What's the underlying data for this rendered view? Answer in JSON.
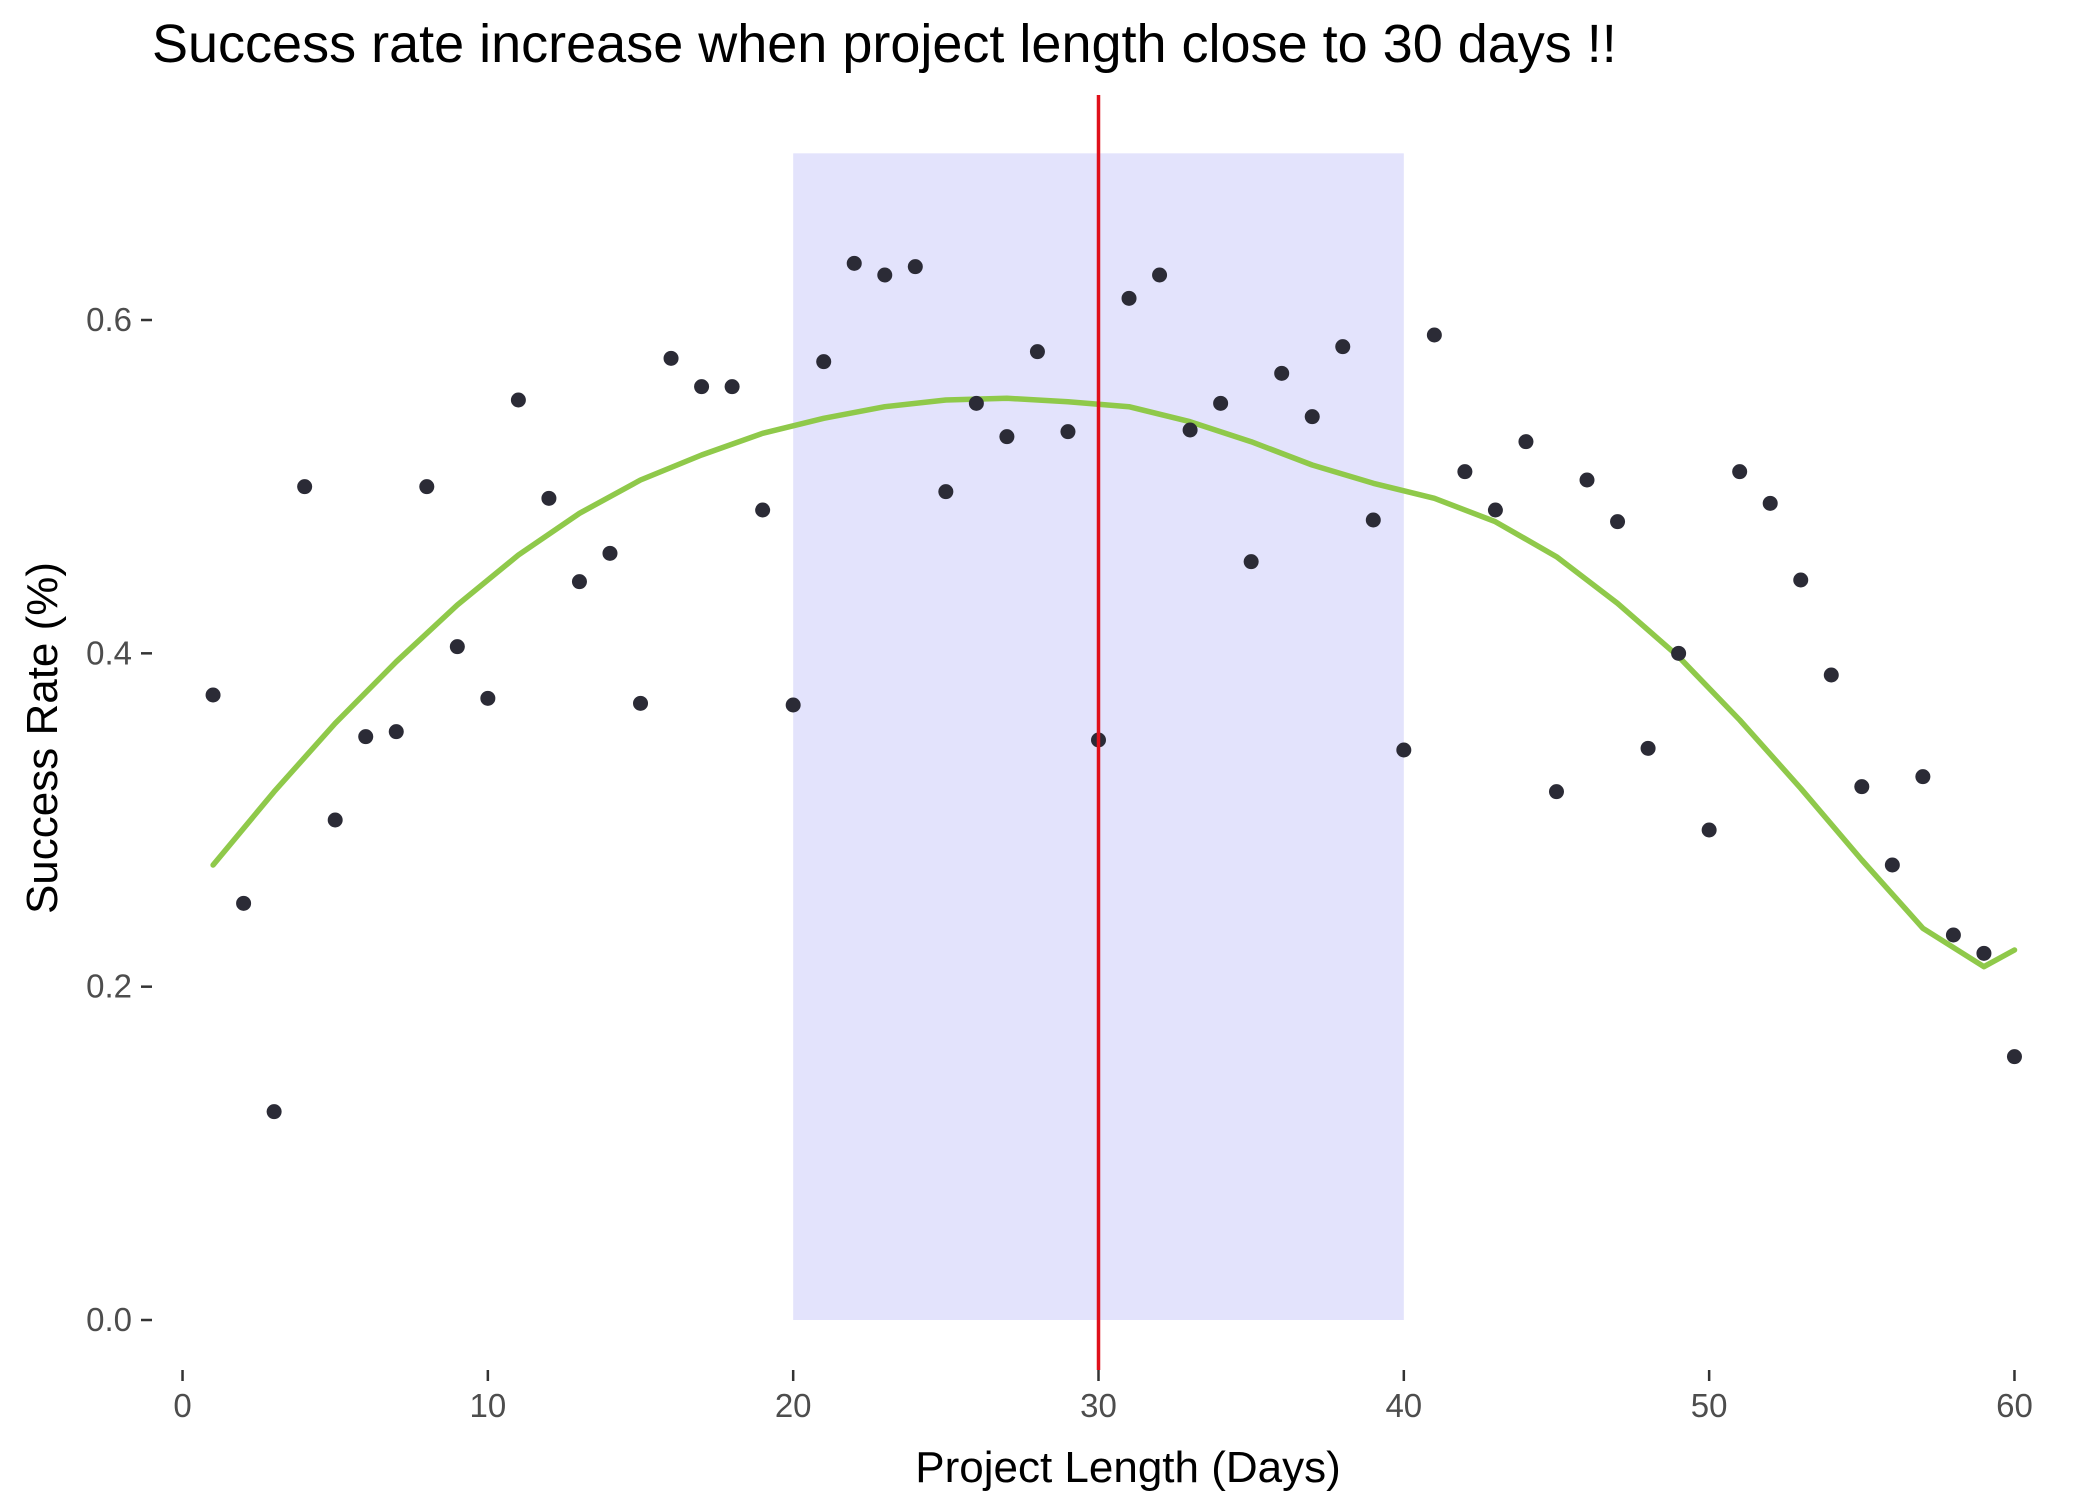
{
  "chart_data": {
    "type": "scatter",
    "title": "Success rate increase when project length close to 30 days !!",
    "xlabel": "Project Length (Days)",
    "ylabel": "Success Rate (%)",
    "xlim": [
      -1,
      61
    ],
    "ylim": [
      -0.03,
      0.735
    ],
    "x_ticks": [
      0,
      10,
      20,
      30,
      40,
      50,
      60
    ],
    "x_tick_labels": [
      "0",
      "10",
      "20",
      "30",
      "40",
      "50",
      "60"
    ],
    "y_ticks": [
      0.0,
      0.2,
      0.4,
      0.6
    ],
    "y_tick_labels": [
      "0.0",
      "0.2",
      "0.4",
      "0.6"
    ],
    "grid": false,
    "legend": "none",
    "points": {
      "x": [
        1,
        2,
        3,
        4,
        5,
        6,
        7,
        8,
        9,
        10,
        11,
        12,
        13,
        14,
        15,
        16,
        17,
        18,
        19,
        20,
        21,
        22,
        23,
        24,
        25,
        26,
        27,
        28,
        29,
        30,
        31,
        32,
        33,
        34,
        35,
        36,
        37,
        38,
        39,
        40,
        41,
        42,
        43,
        44,
        45,
        46,
        47,
        48,
        49,
        50,
        51,
        52,
        53,
        54,
        55,
        56,
        57,
        58,
        59,
        60
      ],
      "y": [
        0.375,
        0.25,
        0.125,
        0.5,
        0.3,
        0.35,
        0.353,
        0.5,
        0.404,
        0.373,
        0.552,
        0.493,
        0.443,
        0.46,
        0.37,
        0.577,
        0.56,
        0.56,
        0.486,
        0.369,
        0.575,
        0.634,
        0.627,
        0.632,
        0.497,
        0.55,
        0.53,
        0.581,
        0.533,
        0.348,
        0.613,
        0.627,
        0.534,
        0.55,
        0.455,
        0.568,
        0.542,
        0.584,
        0.48,
        0.342,
        0.591,
        0.509,
        0.486,
        0.527,
        0.317,
        0.504,
        0.479,
        0.343,
        0.4,
        0.294,
        0.509,
        0.49,
        0.444,
        0.387,
        0.32,
        0.273,
        0.326,
        0.231,
        0.22,
        0.158
      ],
      "color": "#2b2b36"
    },
    "smooth": {
      "x": [
        1,
        3,
        5,
        7,
        9,
        11,
        13,
        15,
        17,
        19,
        21,
        23,
        25,
        27,
        29,
        31,
        33,
        35,
        37,
        39,
        41,
        43,
        45,
        47,
        49,
        51,
        53,
        55,
        57,
        59,
        60
      ],
      "y": [
        0.273,
        0.317,
        0.358,
        0.395,
        0.429,
        0.459,
        0.484,
        0.504,
        0.519,
        0.532,
        0.541,
        0.548,
        0.552,
        0.553,
        0.551,
        0.548,
        0.539,
        0.527,
        0.513,
        0.502,
        0.493,
        0.479,
        0.458,
        0.43,
        0.398,
        0.36,
        0.319,
        0.276,
        0.235,
        0.212,
        0.222
      ],
      "color": "#8fc94a"
    },
    "highlight_band": {
      "x": [
        20,
        40
      ],
      "y": [
        0.0,
        0.7
      ],
      "color": "#e3e3fc"
    },
    "vline": {
      "x": 30,
      "color": "#e0101a"
    }
  }
}
